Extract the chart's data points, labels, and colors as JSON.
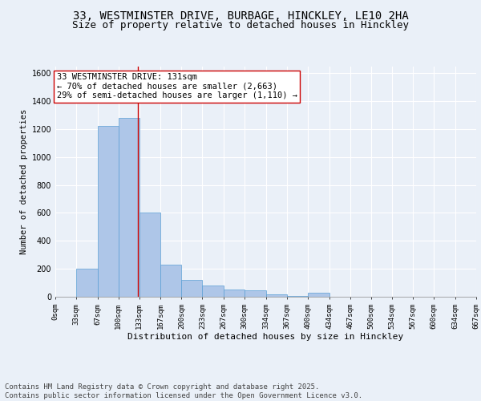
{
  "title1": "33, WESTMINSTER DRIVE, BURBAGE, HINCKLEY, LE10 2HA",
  "title2": "Size of property relative to detached houses in Hinckley",
  "xlabel": "Distribution of detached houses by size in Hinckley",
  "ylabel": "Number of detached properties",
  "bin_edges": [
    0,
    33,
    67,
    100,
    133,
    167,
    200,
    233,
    267,
    300,
    334,
    367,
    400,
    434,
    467,
    500,
    534,
    567,
    600,
    634,
    667
  ],
  "bin_labels": [
    "0sqm",
    "33sqm",
    "67sqm",
    "100sqm",
    "133sqm",
    "167sqm",
    "200sqm",
    "233sqm",
    "267sqm",
    "300sqm",
    "334sqm",
    "367sqm",
    "400sqm",
    "434sqm",
    "467sqm",
    "500sqm",
    "534sqm",
    "567sqm",
    "600sqm",
    "634sqm",
    "667sqm"
  ],
  "bar_heights": [
    0,
    200,
    1220,
    1280,
    600,
    230,
    120,
    80,
    50,
    45,
    20,
    5,
    30,
    0,
    0,
    0,
    0,
    0,
    0,
    0
  ],
  "bar_color": "#aec6e8",
  "bar_edge_color": "#5a9fd4",
  "property_line_x": 131,
  "property_line_color": "#cc0000",
  "annotation_text": "33 WESTMINSTER DRIVE: 131sqm\n← 70% of detached houses are smaller (2,663)\n29% of semi-detached houses are larger (1,110) →",
  "annotation_box_color": "#ffffff",
  "annotation_box_edge_color": "#cc0000",
  "ylim": [
    0,
    1650
  ],
  "yticks": [
    0,
    200,
    400,
    600,
    800,
    1000,
    1200,
    1400,
    1600
  ],
  "bg_color": "#eaf0f8",
  "plot_bg_color": "#eaf0f8",
  "footer_line1": "Contains HM Land Registry data © Crown copyright and database right 2025.",
  "footer_line2": "Contains public sector information licensed under the Open Government Licence v3.0.",
  "title1_fontsize": 10,
  "title2_fontsize": 9,
  "annotation_fontsize": 7.5,
  "footer_fontsize": 6.5,
  "ylabel_fontsize": 7.5,
  "xlabel_fontsize": 8
}
